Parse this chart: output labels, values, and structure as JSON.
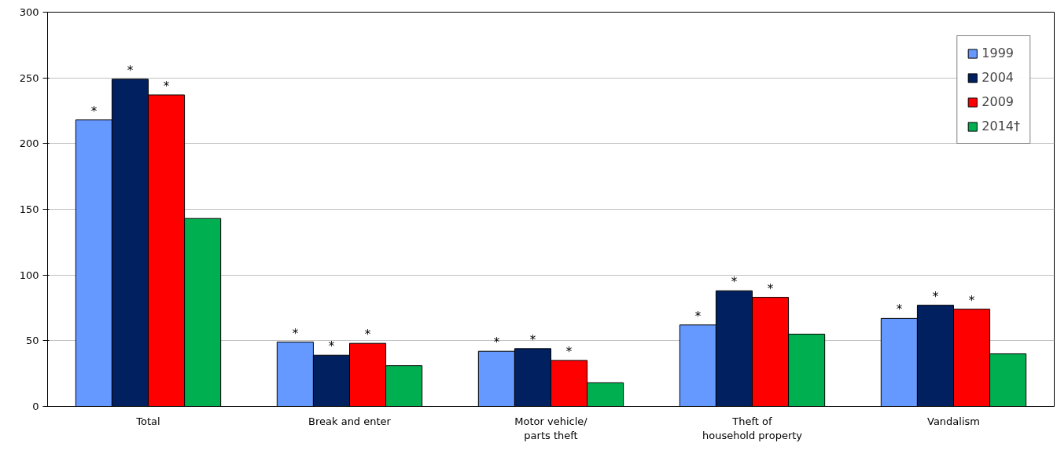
{
  "chart_data": {
    "type": "bar",
    "categories": [
      "Total",
      "Break and enter",
      "Motor vehicle/\nparts theft",
      "Theft of\nhousehold property",
      "Vandalism"
    ],
    "series": [
      {
        "name": "1999",
        "color": "#6699ff",
        "values": [
          218,
          49,
          42,
          62,
          67
        ],
        "value_labels": [
          "*",
          "*",
          "*",
          "*",
          "*"
        ]
      },
      {
        "name": "2004",
        "color": "#002060",
        "values": [
          249,
          39,
          44,
          88,
          77
        ],
        "value_labels": [
          "*",
          "*",
          "*",
          "*",
          "*"
        ]
      },
      {
        "name": "2009",
        "color": "#ff0000",
        "values": [
          237,
          48,
          35,
          83,
          74
        ],
        "value_labels": [
          "*",
          "*",
          "*",
          "*",
          "*"
        ]
      },
      {
        "name": "2014†",
        "color": "#00b050",
        "values": [
          143,
          31,
          18,
          55,
          40
        ]
      }
    ],
    "ylim": [
      0,
      300
    ],
    "yticks": [
      0,
      50,
      100,
      150,
      200,
      250,
      300
    ],
    "grid": "y",
    "legend": "top right"
  }
}
